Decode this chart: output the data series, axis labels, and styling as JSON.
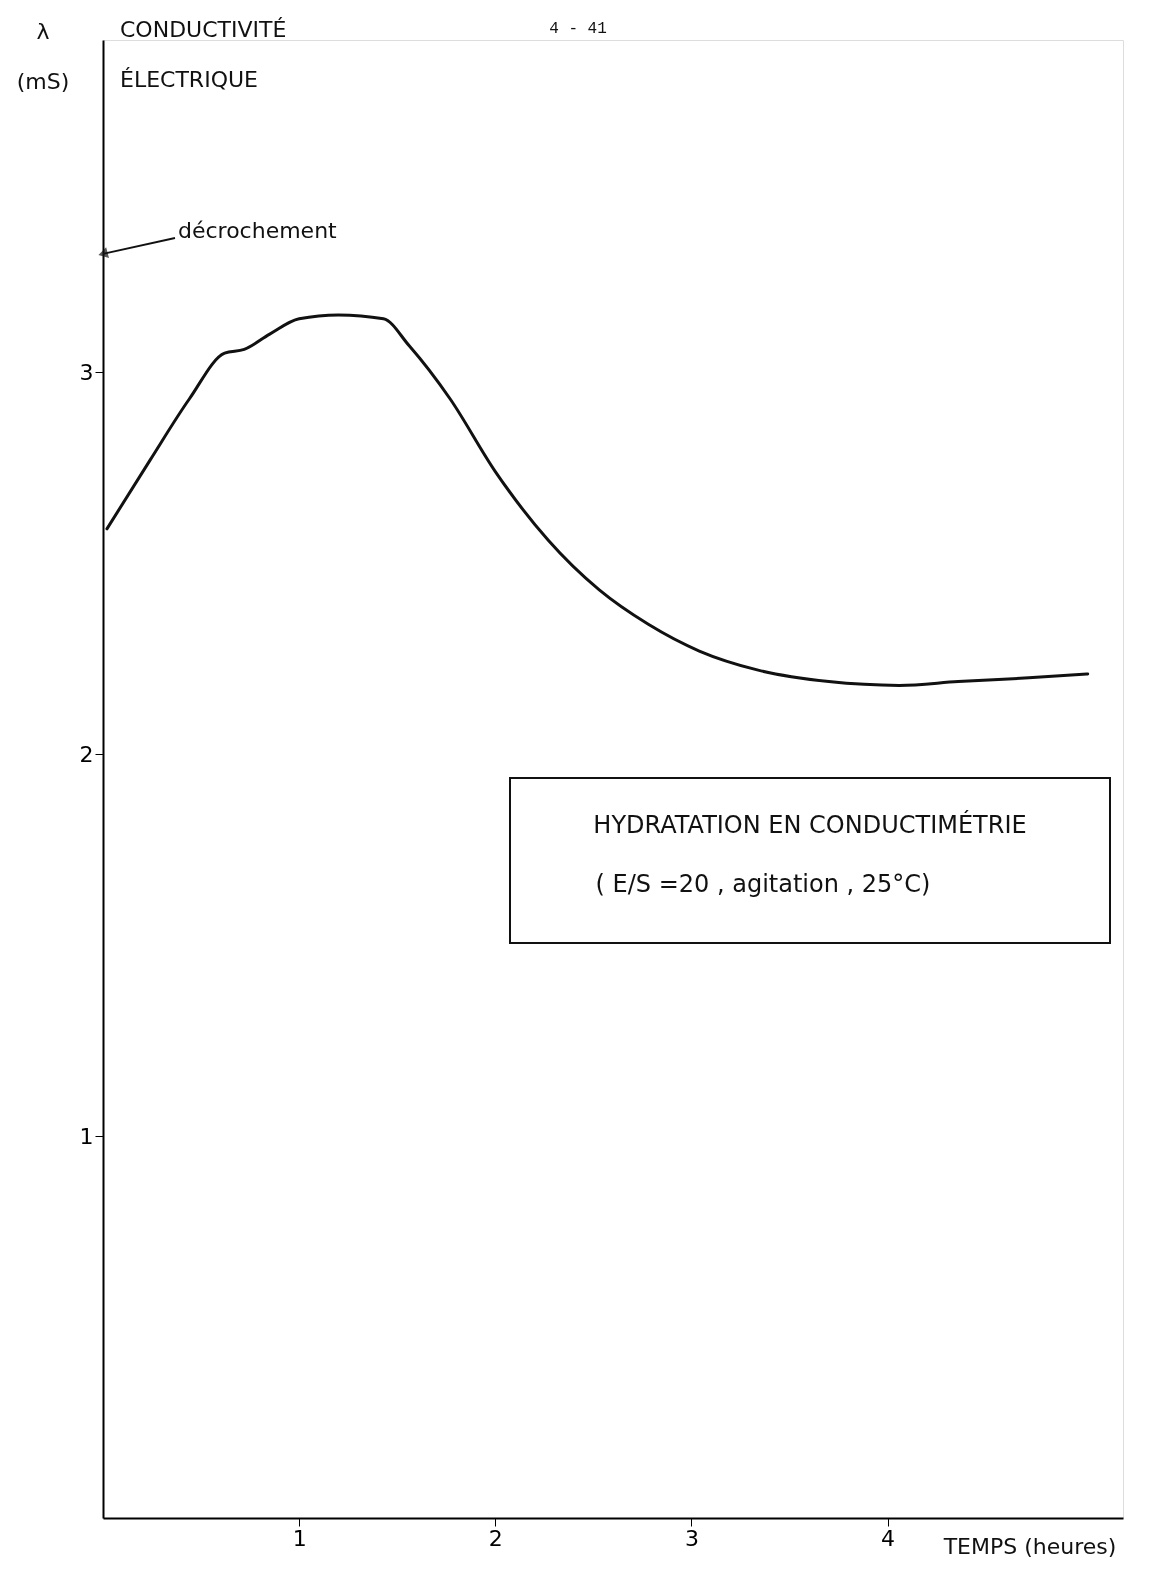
{
  "chart_data": {
    "type": "line",
    "title": "HYDRATATION EN CONDUCTIMÉTRIE",
    "subtitle": "( E/S =20 , agitation , 25°C)",
    "xlabel": "TEMPS (heures)",
    "ylabel": "λ (mS)",
    "annotations": [
      "CONDUCTIVITÉ ÉLECTRIQUE",
      "4 - 41",
      {
        "text": "décrochement",
        "x": 0,
        "y": 3.31
      }
    ],
    "x": [
      0.02,
      0.24,
      0.44,
      0.62,
      0.72,
      0.85,
      1.0,
      1.2,
      1.43,
      1.56,
      1.77,
      2.0,
      2.27,
      2.53,
      2.78,
      3.04,
      3.34,
      3.7,
      4.06,
      4.36,
      4.72,
      5.02
    ],
    "series": [
      {
        "color": "#111111",
        "values": [
          2.59,
          2.77,
          2.93,
          3.05,
          3.06,
          3.1,
          3.14,
          3.15,
          3.14,
          3.07,
          2.93,
          2.74,
          2.56,
          2.43,
          2.34,
          2.27,
          2.22,
          2.19,
          2.18,
          2.19,
          2.2,
          2.21
        ]
      }
    ],
    "xlim": [
      0,
      5.2
    ],
    "ylim": [
      0,
      3.87
    ],
    "xticks": [
      1,
      2,
      3,
      4
    ],
    "yticks": [
      1,
      2,
      3
    ],
    "grid": false,
    "marker": "none",
    "line_style": "solid"
  }
}
